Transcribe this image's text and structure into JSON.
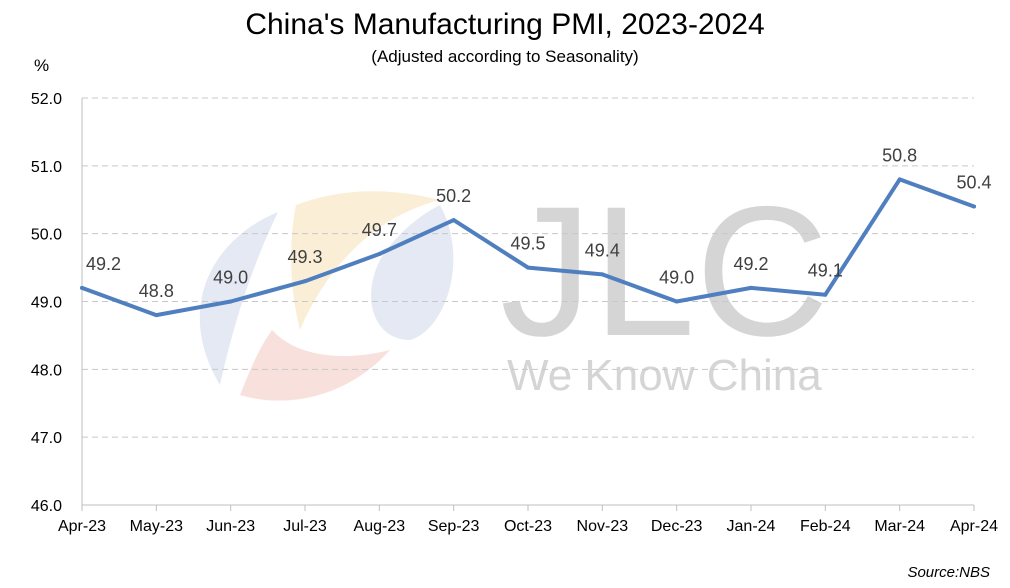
{
  "chart_data": {
    "type": "line",
    "title": "China's Manufacturing PMI, 2023-2024",
    "subtitle": "(Adjusted according to Seasonality)",
    "ylabel": "%",
    "xlabel": "",
    "categories": [
      "Apr-23",
      "May-23",
      "Jun-23",
      "Jul-23",
      "Aug-23",
      "Sep-23",
      "Oct-23",
      "Nov-23",
      "Dec-23",
      "Jan-24",
      "Feb-24",
      "Mar-24",
      "Apr-24"
    ],
    "series": [
      {
        "values": [
          49.2,
          48.8,
          49.0,
          49.3,
          49.7,
          50.2,
          49.5,
          49.4,
          49.0,
          49.2,
          49.1,
          50.8,
          50.4
        ]
      }
    ],
    "ylim": [
      46.0,
      52.0
    ],
    "yticks": [
      "46.0",
      "47.0",
      "48.0",
      "49.0",
      "50.0",
      "51.0",
      "52.0"
    ],
    "grid": true,
    "line_color": "#4f7fbf",
    "source": "Source:NBS"
  },
  "watermark": {
    "logo_text": "JLC",
    "tagline": "We Know China"
  }
}
